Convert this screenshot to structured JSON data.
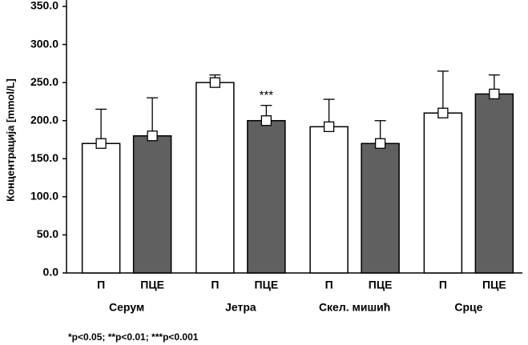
{
  "chart_data": {
    "type": "bar",
    "y_label": "Концентрација [mmol/L]",
    "categories": [
      "Серум",
      "Јетра",
      "Скел. мишић",
      "Срце"
    ],
    "series": [
      {
        "name": "П",
        "color": "#ffffff",
        "values": [
          170,
          250,
          192,
          210
        ],
        "errors": [
          45,
          10,
          36,
          55
        ]
      },
      {
        "name": "ПЦЕ",
        "color": "#606060",
        "values": [
          180,
          200,
          170,
          235
        ],
        "errors": [
          50,
          20,
          30,
          25
        ]
      }
    ],
    "ylim": [
      0,
      350
    ],
    "yticks": [
      {
        "value": 0,
        "label": "0.0"
      },
      {
        "value": 50,
        "label": "50.0"
      },
      {
        "value": 100,
        "label": "100.0"
      },
      {
        "value": 150,
        "label": "150.0"
      },
      {
        "value": 200,
        "label": "200.0"
      },
      {
        "value": 250,
        "label": "250.0"
      },
      {
        "value": 300,
        "label": "300.0"
      },
      {
        "value": 350,
        "label": "350.0"
      }
    ],
    "annotation": "***",
    "footnote": "*p<0.05; **p<0.01; ***p<0.001"
  }
}
